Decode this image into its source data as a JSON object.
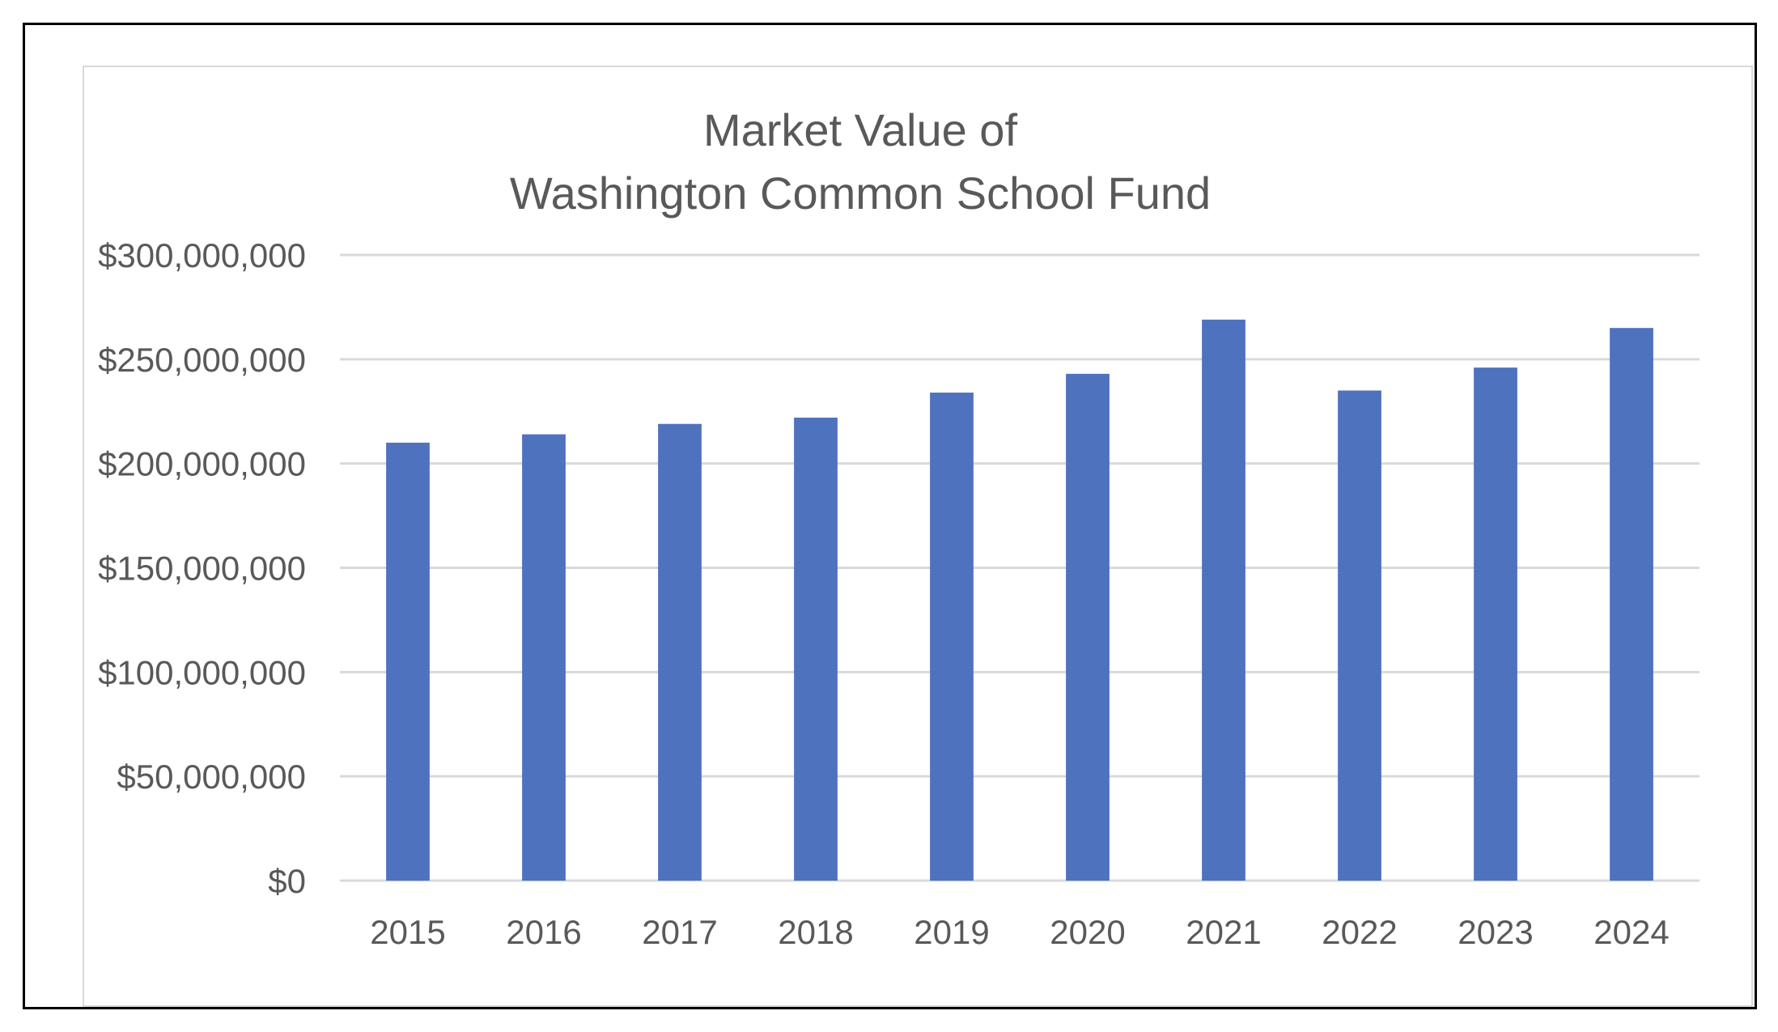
{
  "chart_data": {
    "type": "bar",
    "title_lines": [
      "Market Value of",
      "Washington Common School Fund"
    ],
    "xlabel": "",
    "ylabel": "",
    "categories": [
      "2015",
      "2016",
      "2017",
      "2018",
      "2019",
      "2020",
      "2021",
      "2022",
      "2023",
      "2024"
    ],
    "values": [
      210000000,
      214000000,
      219000000,
      222000000,
      234000000,
      243000000,
      269000000,
      235000000,
      246000000,
      265000000
    ],
    "ylim": [
      0,
      300000000
    ],
    "yticks": [
      0,
      50000000,
      100000000,
      150000000,
      200000000,
      250000000,
      300000000
    ],
    "ytick_labels": [
      "$0",
      "$50,000,000",
      "$100,000,000",
      "$150,000,000",
      "$200,000,000",
      "$250,000,000",
      "$300,000,000"
    ],
    "grid": true,
    "legend": "none",
    "bar_color": "#4f72be",
    "grid_color": "#d9d9d9",
    "text_color": "#595959"
  }
}
